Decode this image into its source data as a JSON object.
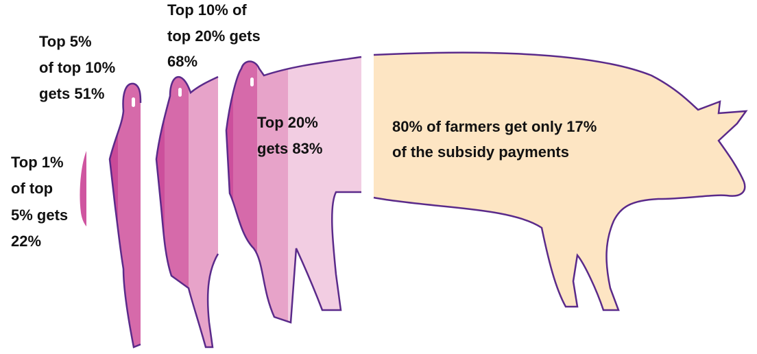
{
  "labels": [
    {
      "lines": [
        "Top 1%",
        "of top",
        "5% gets",
        "22%"
      ]
    },
    {
      "lines": [
        "Top 5%",
        "of top 10%",
        "gets 51%"
      ]
    },
    {
      "lines": [
        "Top 10% of",
        "top 20% gets",
        "68%"
      ]
    },
    {
      "lines": [
        "Top 20%",
        "gets 83%"
      ]
    },
    {
      "lines": [
        "80% of farmers get only 17%",
        "of the subsidy payments"
      ]
    }
  ]
}
